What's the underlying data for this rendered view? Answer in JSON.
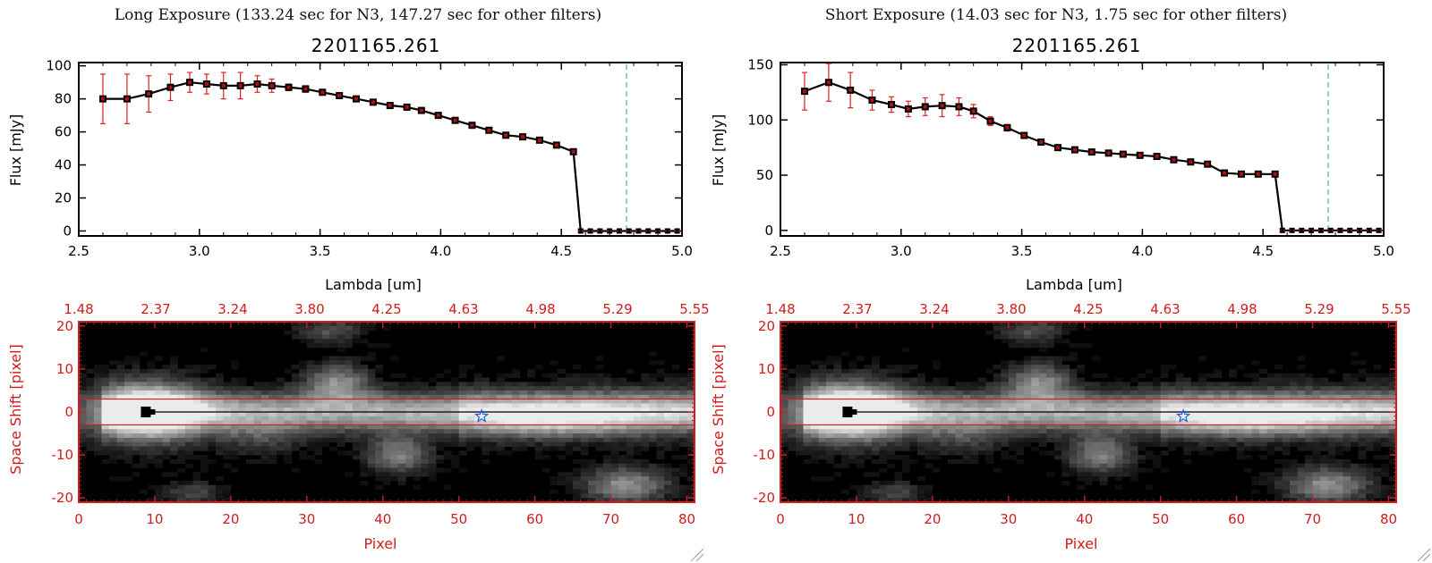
{
  "colors": {
    "err": "#e02020",
    "marker_fill": "#b01010",
    "line": "#000000",
    "dash_cyan": "#22a0a0",
    "red_axis": "#d01c1c",
    "star": "#2060e0"
  },
  "panels": [
    {
      "id": "long",
      "header": "Long Exposure (133.24 sec for N3, 147.27 sec for other filters)",
      "chart_data": {
        "type": "line",
        "title": "2201165.261",
        "xlabel": "Lambda [um]",
        "ylabel": "Flux [mJy]",
        "xlim": [
          2.5,
          5.0
        ],
        "ylim": [
          -3,
          102
        ],
        "xticks": [
          2.5,
          3.0,
          3.5,
          4.0,
          4.5,
          5.0
        ],
        "xtick_labels": [
          "2.5",
          "3.0",
          "3.5",
          "4.0",
          "4.5",
          "5.0"
        ],
        "yticks": [
          0,
          20,
          40,
          60,
          80,
          100
        ],
        "ytick_labels": [
          "0",
          "20",
          "40",
          "60",
          "80",
          "100"
        ],
        "vline_x": 4.77,
        "series": [
          {
            "x": [
              2.6,
              2.7,
              2.79,
              2.88,
              2.96,
              3.03,
              3.1,
              3.17,
              3.24,
              3.3,
              3.37,
              3.44,
              3.51,
              3.58,
              3.65,
              3.72,
              3.79,
              3.86,
              3.92,
              3.99,
              4.06,
              4.13,
              4.2,
              4.27,
              4.34,
              4.41,
              4.48,
              4.55,
              4.58,
              4.62,
              4.66,
              4.7,
              4.74,
              4.78,
              4.82,
              4.86,
              4.9,
              4.94,
              4.98
            ],
            "y": [
              80,
              80,
              83,
              87,
              90,
              89,
              88,
              88,
              89,
              88,
              87,
              86,
              84,
              82,
              80,
              78,
              76,
              75,
              73,
              70,
              67,
              64,
              61,
              58,
              57,
              55,
              52,
              48,
              0,
              0,
              0,
              0,
              0,
              0,
              0,
              0,
              0,
              0,
              0
            ],
            "yerr": [
              15,
              15,
              11,
              8,
              6,
              6,
              8,
              8,
              5,
              4,
              2,
              2,
              1,
              1,
              1,
              1,
              1,
              1,
              1,
              1,
              1,
              1,
              1,
              1,
              1,
              1,
              1,
              1,
              0,
              0,
              0,
              0,
              0,
              0,
              0,
              0,
              0,
              0,
              0
            ]
          }
        ]
      },
      "image_data": {
        "type": "heatmap",
        "xlabel": "Pixel",
        "ylabel": "Space Shift [pixel]",
        "xlim": [
          0,
          81
        ],
        "ylim": [
          -21,
          21
        ],
        "xticks": [
          0,
          10,
          20,
          30,
          40,
          50,
          60,
          70,
          80
        ],
        "xtick_labels": [
          "0",
          "10",
          "20",
          "30",
          "40",
          "50",
          "60",
          "70",
          "80"
        ],
        "yticks": [
          -20,
          -10,
          0,
          10,
          20
        ],
        "ytick_labels": [
          "-20",
          "-10",
          "0",
          "10",
          "20"
        ],
        "top_tick_labels": [
          "1.48",
          "2.37",
          "3.24",
          "3.80",
          "4.25",
          "4.63",
          "4.98",
          "5.29",
          "5.55"
        ],
        "band_y": [
          -3,
          3
        ],
        "star_x": 53,
        "star_y": -1,
        "blob_x": 9,
        "blob_y": 0
      }
    },
    {
      "id": "short",
      "header": "Short Exposure (14.03 sec for N3, 1.75 sec for other filters)",
      "chart_data": {
        "type": "line",
        "title": "2201165.261",
        "xlabel": "Lambda [um]",
        "ylabel": "Flux [mJy]",
        "xlim": [
          2.5,
          5.0
        ],
        "ylim": [
          -5,
          152
        ],
        "xticks": [
          2.5,
          3.0,
          3.5,
          4.0,
          4.5,
          5.0
        ],
        "xtick_labels": [
          "2.5",
          "3.0",
          "3.5",
          "4.0",
          "4.5",
          "5.0"
        ],
        "yticks": [
          0,
          50,
          100,
          150
        ],
        "ytick_labels": [
          "0",
          "50",
          "100",
          "150"
        ],
        "vline_x": 4.77,
        "series": [
          {
            "x": [
              2.6,
              2.7,
              2.79,
              2.88,
              2.96,
              3.03,
              3.1,
              3.17,
              3.24,
              3.3,
              3.37,
              3.44,
              3.51,
              3.58,
              3.65,
              3.72,
              3.79,
              3.86,
              3.92,
              3.99,
              4.06,
              4.13,
              4.2,
              4.27,
              4.34,
              4.41,
              4.48,
              4.55,
              4.58,
              4.62,
              4.66,
              4.7,
              4.74,
              4.78,
              4.82,
              4.86,
              4.9,
              4.94,
              4.98
            ],
            "y": [
              126,
              134,
              127,
              118,
              114,
              110,
              112,
              113,
              112,
              108,
              99,
              93,
              86,
              80,
              75,
              73,
              71,
              70,
              69,
              68,
              67,
              64,
              62,
              60,
              52,
              51,
              51,
              51,
              0,
              0,
              0,
              0,
              0,
              0,
              0,
              0,
              0,
              0,
              0
            ],
            "yerr": [
              17,
              17,
              16,
              9,
              7,
              7,
              8,
              10,
              8,
              6,
              4,
              3,
              2,
              2,
              1,
              1,
              1,
              1,
              1,
              1,
              1,
              1,
              1,
              1,
              1,
              1,
              1,
              1,
              0,
              0,
              0,
              0,
              0,
              0,
              0,
              0,
              0,
              0,
              0
            ]
          }
        ]
      },
      "image_data": {
        "type": "heatmap",
        "xlabel": "Pixel",
        "ylabel": "Space Shift [pixel]",
        "xlim": [
          0,
          81
        ],
        "ylim": [
          -21,
          21
        ],
        "xticks": [
          0,
          10,
          20,
          30,
          40,
          50,
          60,
          70,
          80
        ],
        "xtick_labels": [
          "0",
          "10",
          "20",
          "30",
          "40",
          "50",
          "60",
          "70",
          "80"
        ],
        "yticks": [
          -20,
          -10,
          0,
          10,
          20
        ],
        "ytick_labels": [
          "-20",
          "-10",
          "0",
          "10",
          "20"
        ],
        "top_tick_labels": [
          "1.48",
          "2.37",
          "3.24",
          "3.80",
          "4.25",
          "4.63",
          "4.98",
          "5.29",
          "5.55"
        ],
        "band_y": [
          -3,
          3
        ],
        "star_x": 53,
        "star_y": -1,
        "blob_x": 9,
        "blob_y": 0
      }
    }
  ]
}
